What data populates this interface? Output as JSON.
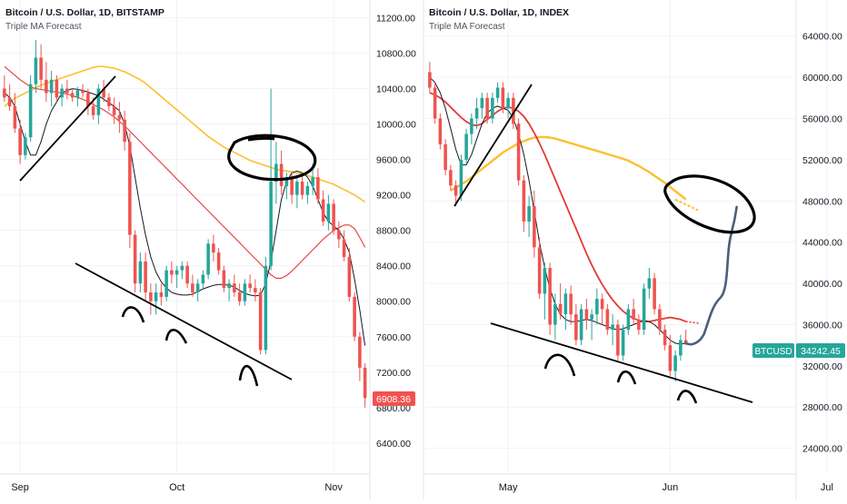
{
  "colors": {
    "up": "#26a69a",
    "down": "#ef5350",
    "ma_fast": "#131722",
    "ma_mid": "#e53935",
    "ma_slow": "#fbc02d",
    "projection": "#4c5f7a",
    "annotation": "#000000",
    "badge_left": "#ef5350",
    "badge_right": "#26a69a"
  },
  "chart_data": [
    {
      "type": "candlestick",
      "title": "Bitcoin / U.S. Dollar, 1D, BITSTAMP",
      "subtitle": "Triple MA Forecast",
      "y_ticks": [
        "11200.00",
        "10800.00",
        "10400.00",
        "10000.00",
        "9600.00",
        "9200.00",
        "8800.00",
        "8400.00",
        "8000.00",
        "7600.00",
        "7200.00",
        "6800.00",
        "6400.00"
      ],
      "y_tick_values": [
        11200,
        10800,
        10400,
        10000,
        9600,
        9200,
        8800,
        8400,
        8000,
        7600,
        7200,
        6800,
        6400
      ],
      "ylim": [
        6050,
        11400
      ],
      "x_labels": [
        "Sep",
        "Oct",
        "Nov"
      ],
      "x_label_index": [
        3,
        33,
        63
      ],
      "last_price_label": "6908.36",
      "ma_slow": [
        10200,
        10250,
        10290,
        10320,
        10350,
        10380,
        10410,
        10440,
        10460,
        10480,
        10500,
        10520,
        10540,
        10560,
        10580,
        10600,
        10620,
        10640,
        10650,
        10650,
        10640,
        10630,
        10610,
        10590,
        10560,
        10530,
        10500,
        10460,
        10410,
        10360,
        10310,
        10260,
        10210,
        10160,
        10110,
        10060,
        10010,
        9960,
        9910,
        9860,
        9820,
        9780,
        9740,
        9710,
        9680,
        9650,
        9620,
        9590,
        9570,
        9550,
        9530,
        9510,
        9490,
        9480,
        9470,
        9460,
        9450,
        9440,
        9420,
        9400,
        9380,
        9360,
        9340,
        9320,
        9290,
        9260,
        9230,
        9200,
        9160,
        9120
      ],
      "ma_mid": [
        10650,
        10600,
        10550,
        10500,
        10460,
        10420,
        10400,
        10390,
        10380,
        10370,
        10360,
        10350,
        10340,
        10320,
        10300,
        10280,
        10250,
        10220,
        10190,
        10160,
        10120,
        10080,
        10030,
        9980,
        9920,
        9860,
        9800,
        9740,
        9680,
        9620,
        9560,
        9500,
        9440,
        9380,
        9320,
        9260,
        9200,
        9140,
        9080,
        9020,
        8960,
        8900,
        8840,
        8780,
        8720,
        8660,
        8600,
        8540,
        8480,
        8420,
        8360,
        8300,
        8260,
        8260,
        8290,
        8340,
        8400,
        8460,
        8520,
        8580,
        8640,
        8700,
        8750,
        8800,
        8830,
        8860,
        8860,
        8820,
        8720,
        8610
      ],
      "ma_fast": [
        10350,
        10300,
        10200,
        10000,
        9800,
        9650,
        9650,
        9800,
        10000,
        10150,
        10250,
        10350,
        10380,
        10400,
        10390,
        10380,
        10360,
        10340,
        10320,
        10280,
        10240,
        10200,
        10150,
        10000,
        9750,
        9400,
        9050,
        8750,
        8500,
        8330,
        8220,
        8150,
        8100,
        8080,
        8070,
        8070,
        8080,
        8110,
        8140,
        8160,
        8180,
        8190,
        8190,
        8180,
        8160,
        8120,
        8090,
        8070,
        8060,
        8070,
        8200,
        8450,
        8800,
        9150,
        9350,
        9450,
        9470,
        9450,
        9400,
        9300,
        9150,
        9000,
        8900,
        8850,
        8800,
        8700,
        8550,
        8250,
        7900,
        7500
      ],
      "candles": [
        [
          10400,
          10550,
          10250,
          10300
        ],
        [
          10300,
          10450,
          10150,
          10200
        ],
        [
          10200,
          10350,
          9900,
          9950
        ],
        [
          9950,
          10050,
          9550,
          9650
        ],
        [
          9650,
          9900,
          9600,
          9850
        ],
        [
          9850,
          10550,
          9800,
          10450
        ],
        [
          10450,
          10950,
          10350,
          10750
        ],
        [
          10750,
          10900,
          10400,
          10500
        ],
        [
          10500,
          10700,
          10250,
          10350
        ],
        [
          10350,
          10600,
          10200,
          10500
        ],
        [
          10500,
          10550,
          10250,
          10300
        ],
        [
          10300,
          10450,
          10200,
          10400
        ],
        [
          10400,
          10500,
          10280,
          10350
        ],
        [
          10350,
          10400,
          10250,
          10300
        ],
        [
          10300,
          10420,
          10200,
          10380
        ],
        [
          10380,
          10450,
          10300,
          10350
        ],
        [
          10350,
          10400,
          10100,
          10200
        ],
        [
          10200,
          10300,
          10050,
          10100
        ],
        [
          10100,
          10450,
          10000,
          10400
        ],
        [
          10400,
          10500,
          10250,
          10300
        ],
        [
          10300,
          10350,
          10150,
          10200
        ],
        [
          10200,
          10300,
          10000,
          10100
        ],
        [
          10100,
          10250,
          9900,
          10050
        ],
        [
          10050,
          10150,
          9700,
          9800
        ],
        [
          9800,
          9900,
          8600,
          8750
        ],
        [
          8750,
          8800,
          8100,
          8200
        ],
        [
          8200,
          8550,
          8100,
          8450
        ],
        [
          8450,
          8550,
          8000,
          8100
        ],
        [
          8100,
          8200,
          7850,
          8000
        ],
        [
          8000,
          8200,
          7850,
          8100
        ],
        [
          8100,
          8200,
          7950,
          8050
        ],
        [
          8050,
          8400,
          8000,
          8350
        ],
        [
          8350,
          8450,
          8200,
          8300
        ],
        [
          8300,
          8400,
          8150,
          8350
        ],
        [
          8350,
          8450,
          8250,
          8400
        ],
        [
          8400,
          8450,
          8150,
          8200
        ],
        [
          8200,
          8300,
          8050,
          8100
        ],
        [
          8100,
          8250,
          8000,
          8200
        ],
        [
          8200,
          8350,
          8150,
          8300
        ],
        [
          8300,
          8700,
          8250,
          8650
        ],
        [
          8650,
          8750,
          8450,
          8550
        ],
        [
          8550,
          8600,
          8300,
          8350
        ],
        [
          8350,
          8400,
          8100,
          8150
        ],
        [
          8150,
          8250,
          8000,
          8200
        ],
        [
          8200,
          8300,
          8050,
          8100
        ],
        [
          8100,
          8200,
          7950,
          8000
        ],
        [
          8000,
          8250,
          7950,
          8200
        ],
        [
          8200,
          8300,
          8100,
          8150
        ],
        [
          8150,
          8250,
          8000,
          8100
        ],
        [
          8100,
          8150,
          7400,
          7450
        ],
        [
          7450,
          8500,
          7400,
          8400
        ],
        [
          8400,
          10400,
          8350,
          9350
        ],
        [
          9350,
          9800,
          9100,
          9550
        ],
        [
          9550,
          9700,
          9200,
          9300
        ],
        [
          9300,
          9450,
          9150,
          9400
        ],
        [
          9400,
          9450,
          9100,
          9200
        ],
        [
          9200,
          9400,
          9050,
          9350
        ],
        [
          9350,
          9450,
          9150,
          9200
        ],
        [
          9200,
          9350,
          9100,
          9300
        ],
        [
          9300,
          9550,
          9200,
          9400
        ],
        [
          9400,
          9500,
          9100,
          9150
        ],
        [
          9150,
          9250,
          8850,
          8900
        ],
        [
          8900,
          9200,
          8800,
          9100
        ],
        [
          9100,
          9150,
          8750,
          8800
        ],
        [
          8800,
          8900,
          8600,
          8700
        ],
        [
          8700,
          8800,
          8450,
          8500
        ],
        [
          8500,
          8600,
          8000,
          8050
        ],
        [
          8050,
          8100,
          7550,
          7600
        ],
        [
          7600,
          7650,
          7100,
          7250
        ],
        [
          7250,
          7300,
          6800,
          6908
        ]
      ]
    },
    {
      "type": "candlestick",
      "title": "Bitcoin / U.S. Dollar, 1D, INDEX",
      "subtitle": "Triple MA Forecast",
      "y_ticks": [
        "64000.00",
        "60000.00",
        "56000.00",
        "52000.00",
        "48000.00",
        "44000.00",
        "40000.00",
        "36000.00",
        "32000.00",
        "28000.00",
        "24000.00"
      ],
      "y_tick_values": [
        64000,
        60000,
        56000,
        52000,
        48000,
        44000,
        40000,
        36000,
        32000,
        28000,
        24000
      ],
      "ylim": [
        21500,
        67500
      ],
      "x_labels": [
        "May",
        "Jun",
        "Jul"
      ],
      "x_label_index": [
        15,
        46,
        76
      ],
      "last_price_label": "34242.45",
      "price_badge_label": "BTCUSD",
      "ma_slow": [
        null,
        null,
        null,
        null,
        49000,
        49300,
        49600,
        49900,
        50300,
        50700,
        51100,
        51500,
        51900,
        52300,
        52700,
        53000,
        53300,
        53600,
        53800,
        54000,
        54150,
        54200,
        54200,
        54150,
        54050,
        53900,
        53750,
        53600,
        53450,
        53300,
        53150,
        53000,
        52850,
        52700,
        52550,
        52400,
        52250,
        52100,
        51900,
        51650,
        51400,
        51100,
        50800,
        50450,
        50100,
        49750,
        49350,
        48950,
        48550,
        48150
      ],
      "ma_mid": [
        58500,
        58300,
        58000,
        57600,
        57100,
        56600,
        56100,
        55700,
        55400,
        55300,
        55500,
        55900,
        56300,
        56700,
        57000,
        57100,
        57000,
        56700,
        56200,
        55500,
        54600,
        53600,
        52500,
        51300,
        50100,
        48900,
        47700,
        46500,
        45300,
        44100,
        42900,
        41800,
        40800,
        39900,
        39100,
        38400,
        37800,
        37300,
        36900,
        36600,
        36400,
        36300,
        36300,
        36400,
        36500,
        36600,
        36700,
        36600,
        36500,
        36300
      ],
      "ma_fast": [
        60000,
        59500,
        58500,
        57000,
        55000,
        53000,
        51500,
        51500,
        52500,
        54000,
        55500,
        56500,
        57000,
        57200,
        57000,
        56800,
        56000,
        54500,
        52500,
        50000,
        47000,
        44000,
        41500,
        39500,
        38000,
        37000,
        36500,
        36300,
        36300,
        36400,
        36500,
        36400,
        36200,
        36000,
        35800,
        35600,
        35500,
        35600,
        35800,
        36000,
        36200,
        36400,
        36300,
        36000,
        35500,
        35000,
        34500,
        34200,
        34100,
        34200
      ],
      "candles": [
        [
          60500,
          61500,
          58500,
          59000
        ],
        [
          59000,
          59500,
          55500,
          56000
        ],
        [
          56000,
          56500,
          53000,
          53500
        ],
        [
          53500,
          54000,
          50500,
          51000
        ],
        [
          51000,
          51500,
          49000,
          49500
        ],
        [
          49500,
          50000,
          47500,
          48500
        ],
        [
          48500,
          52500,
          48000,
          52000
        ],
        [
          52000,
          55000,
          51500,
          54500
        ],
        [
          54500,
          56500,
          53500,
          56000
        ],
        [
          56000,
          58000,
          55000,
          57000
        ],
        [
          57000,
          58500,
          56000,
          58000
        ],
        [
          58000,
          58500,
          55500,
          56000
        ],
        [
          56000,
          58500,
          55500,
          58000
        ],
        [
          58000,
          59500,
          57500,
          59000
        ],
        [
          59000,
          59500,
          56500,
          57000
        ],
        [
          57000,
          58500,
          56000,
          58000
        ],
        [
          58000,
          58500,
          55000,
          55500
        ],
        [
          55500,
          56000,
          49500,
          50000
        ],
        [
          50000,
          50500,
          45000,
          46000
        ],
        [
          46000,
          48500,
          44500,
          47500
        ],
        [
          47500,
          49000,
          42500,
          43500
        ],
        [
          43500,
          44500,
          38500,
          39000
        ],
        [
          39000,
          42000,
          36500,
          41500
        ],
        [
          41500,
          42000,
          35000,
          36000
        ],
        [
          36000,
          39000,
          34500,
          38000
        ],
        [
          38000,
          40000,
          36500,
          37000
        ],
        [
          37000,
          39500,
          35500,
          39000
        ],
        [
          39000,
          39800,
          36000,
          37000
        ],
        [
          37000,
          38000,
          34000,
          34500
        ],
        [
          34500,
          38000,
          34000,
          37500
        ],
        [
          37500,
          38500,
          35500,
          36500
        ],
        [
          36500,
          37500,
          34500,
          37000
        ],
        [
          37000,
          39500,
          36000,
          38500
        ],
        [
          38500,
          39000,
          36000,
          37500
        ],
        [
          37500,
          38000,
          35000,
          35500
        ],
        [
          35500,
          37000,
          34000,
          36000
        ],
        [
          36000,
          36500,
          32500,
          33000
        ],
        [
          33000,
          36000,
          32500,
          35500
        ],
        [
          35500,
          38000,
          35000,
          37500
        ],
        [
          37500,
          38500,
          36000,
          36500
        ],
        [
          36500,
          37000,
          35000,
          35500
        ],
        [
          35500,
          40000,
          35000,
          39500
        ],
        [
          39500,
          41500,
          38500,
          40500
        ],
        [
          40500,
          41000,
          37000,
          37500
        ],
        [
          37500,
          38000,
          35000,
          35500
        ],
        [
          35500,
          36000,
          33500,
          34000
        ],
        [
          34000,
          35000,
          31000,
          31500
        ],
        [
          31500,
          33500,
          30500,
          33000
        ],
        [
          33000,
          35000,
          32500,
          34500
        ],
        [
          34500,
          35500,
          34000,
          34242
        ]
      ]
    }
  ]
}
